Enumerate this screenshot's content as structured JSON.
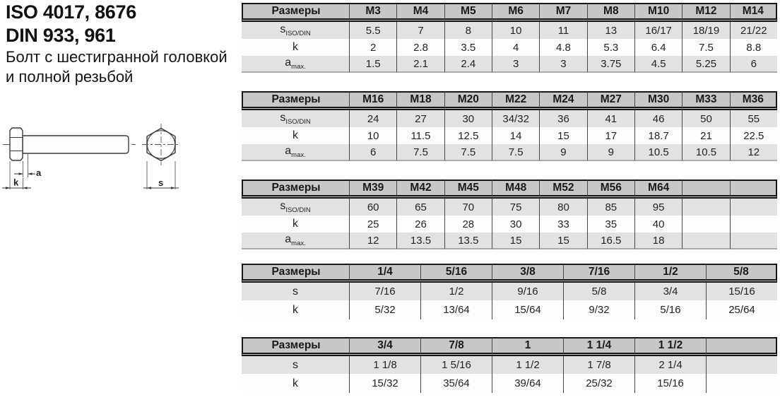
{
  "title": {
    "standards_iso": "ISO 4017, 8676",
    "standards_din": "DIN 933, 961",
    "description_line1": "Болт с шестигранной головкой",
    "description_line2": "и полной резьбой"
  },
  "drawing": {
    "dim_a_label": "a",
    "dim_k_label": "k",
    "dim_s_label": "s"
  },
  "tables": [
    {
      "name": "metric-m3-m14",
      "header_label": "Размеры",
      "columns": [
        "M3",
        "M4",
        "M5",
        "M6",
        "M7",
        "M8",
        "M10",
        "M12",
        "M14"
      ],
      "rows": [
        {
          "label": "s",
          "sub": "ISO/DIN",
          "values": [
            "5.5",
            "7",
            "8",
            "10",
            "11",
            "13",
            "16/17",
            "18/19",
            "21/22"
          ]
        },
        {
          "label": "k",
          "sub": "",
          "values": [
            "2",
            "2.8",
            "3.5",
            "4",
            "4.8",
            "5.3",
            "6.4",
            "7.5",
            "8.8"
          ]
        },
        {
          "label": "a",
          "sub": "max.",
          "values": [
            "1.5",
            "2.1",
            "2.4",
            "3",
            "3",
            "3.75",
            "4.5",
            "5.25",
            "6"
          ]
        }
      ]
    },
    {
      "name": "metric-m16-m36",
      "header_label": "Размеры",
      "columns": [
        "M16",
        "M18",
        "M20",
        "M22",
        "M24",
        "M27",
        "M30",
        "M33",
        "M36"
      ],
      "rows": [
        {
          "label": "s",
          "sub": "ISO/DIN",
          "values": [
            "24",
            "27",
            "30",
            "34/32",
            "36",
            "41",
            "46",
            "50",
            "55"
          ]
        },
        {
          "label": "k",
          "sub": "",
          "values": [
            "10",
            "11.5",
            "12.5",
            "14",
            "15",
            "17",
            "18.7",
            "21",
            "22.5"
          ]
        },
        {
          "label": "a",
          "sub": "max.",
          "values": [
            "6",
            "7.5",
            "7.5",
            "7.5",
            "9",
            "9",
            "10.5",
            "10.5",
            "12"
          ]
        }
      ]
    },
    {
      "name": "metric-m39-m64",
      "header_label": "Размеры",
      "columns": [
        "M39",
        "M42",
        "M45",
        "M48",
        "M52",
        "M56",
        "M64",
        "",
        ""
      ],
      "rows": [
        {
          "label": "s",
          "sub": "ISO/DIN",
          "values": [
            "60",
            "65",
            "70",
            "75",
            "80",
            "85",
            "95",
            "",
            ""
          ]
        },
        {
          "label": "k",
          "sub": "",
          "values": [
            "25",
            "26",
            "28",
            "30",
            "33",
            "35",
            "40",
            "",
            ""
          ]
        },
        {
          "label": "a",
          "sub": "max.",
          "values": [
            "12",
            "13.5",
            "13.5",
            "15",
            "15",
            "16.5",
            "18",
            "",
            ""
          ]
        }
      ]
    },
    {
      "name": "inch-1-4-to-5-8",
      "header_label": "Размеры",
      "columns": [
        "1/4",
        "5/16",
        "3/8",
        "7/16",
        "1/2",
        "5/8"
      ],
      "rows": [
        {
          "label": "s",
          "sub": "",
          "values": [
            "7/16",
            "1/2",
            "9/16",
            "5/8",
            "3/4",
            "15/16"
          ]
        },
        {
          "label": "k",
          "sub": "",
          "values": [
            "5/32",
            "13/64",
            "15/64",
            "9/32",
            "5/16",
            "25/64"
          ]
        }
      ]
    },
    {
      "name": "inch-3-4-to-1-1-2",
      "header_label": "Размеры",
      "columns": [
        "3/4",
        "7/8",
        "1",
        "1 1/4",
        "1 1/2",
        ""
      ],
      "rows": [
        {
          "label": "s",
          "sub": "",
          "values": [
            "1 1/8",
            "1 5/16",
            "1 1/2",
            "1 7/8",
            "2 1/4",
            ""
          ]
        },
        {
          "label": "k",
          "sub": "",
          "values": [
            "15/32",
            "35/64",
            "39/64",
            "25/32",
            "15/16",
            ""
          ]
        }
      ]
    }
  ],
  "colors": {
    "header_bg": "#c7c7c7",
    "row_alt_bg": "#e2e2e2",
    "border_dark": "#161616"
  }
}
